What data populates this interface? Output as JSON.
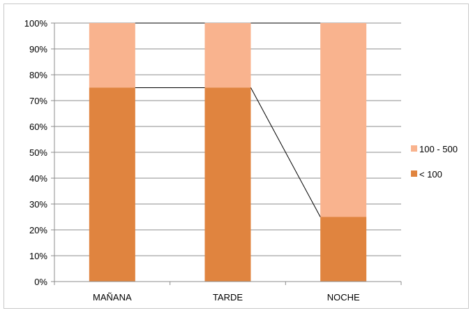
{
  "chart_data": {
    "type": "bar",
    "stacked": true,
    "percent": true,
    "categories": [
      "MAÑANA",
      "TARDE",
      "NOCHE"
    ],
    "series": [
      {
        "name": "< 100",
        "values": [
          75,
          75,
          25
        ],
        "color": "#e0843f"
      },
      {
        "name": "100 - 500",
        "values": [
          25,
          25,
          75
        ],
        "color": "#f9b38e"
      }
    ],
    "y_ticks": [
      "0%",
      "10%",
      "20%",
      "30%",
      "40%",
      "50%",
      "60%",
      "70%",
      "80%",
      "90%",
      "100%"
    ],
    "ylim": [
      0,
      100
    ],
    "grid": true,
    "series_lines": true,
    "legend": {
      "position": "right",
      "items": [
        "100 - 500",
        "< 100"
      ]
    }
  }
}
